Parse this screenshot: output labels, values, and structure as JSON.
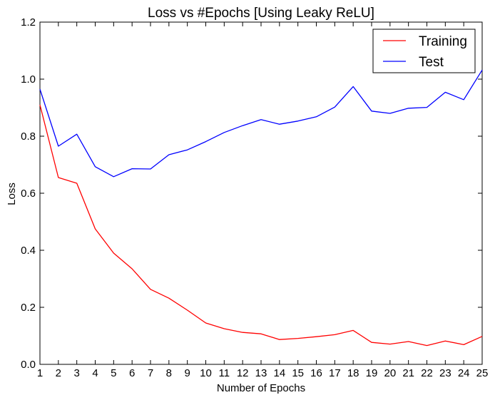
{
  "chart_data": {
    "type": "line",
    "title": "Loss vs #Epochs [Using Leaky ReLU]",
    "xlabel": "Number of Epochs",
    "ylabel": "Loss",
    "x": [
      1,
      2,
      3,
      4,
      5,
      6,
      7,
      8,
      9,
      10,
      11,
      12,
      13,
      14,
      15,
      16,
      17,
      18,
      19,
      20,
      21,
      22,
      23,
      24,
      25
    ],
    "xlim": [
      1,
      25
    ],
    "ylim": [
      0.0,
      1.2
    ],
    "yticks": [
      "0.0",
      "0.2",
      "0.4",
      "0.6",
      "0.8",
      "1.0",
      "1.2"
    ],
    "xticks": [
      "1",
      "2",
      "3",
      "4",
      "5",
      "6",
      "7",
      "8",
      "9",
      "10",
      "11",
      "12",
      "13",
      "14",
      "15",
      "16",
      "17",
      "18",
      "19",
      "20",
      "21",
      "22",
      "23",
      "24",
      "25"
    ],
    "grid": false,
    "legend_position": "top-right",
    "series": [
      {
        "name": "Training",
        "color": "#ff0000",
        "values": [
          0.91,
          0.655,
          0.635,
          0.475,
          0.39,
          0.335,
          0.263,
          0.232,
          0.19,
          0.145,
          0.125,
          0.112,
          0.107,
          0.087,
          0.091,
          0.097,
          0.104,
          0.119,
          0.077,
          0.071,
          0.08,
          0.066,
          0.082,
          0.069,
          0.098
        ]
      },
      {
        "name": "Test",
        "color": "#0000ff",
        "values": [
          0.965,
          0.765,
          0.807,
          0.693,
          0.658,
          0.686,
          0.685,
          0.735,
          0.752,
          0.781,
          0.813,
          0.837,
          0.858,
          0.842,
          0.853,
          0.868,
          0.902,
          0.974,
          0.888,
          0.88,
          0.898,
          0.901,
          0.954,
          0.928,
          1.032
        ]
      }
    ]
  }
}
